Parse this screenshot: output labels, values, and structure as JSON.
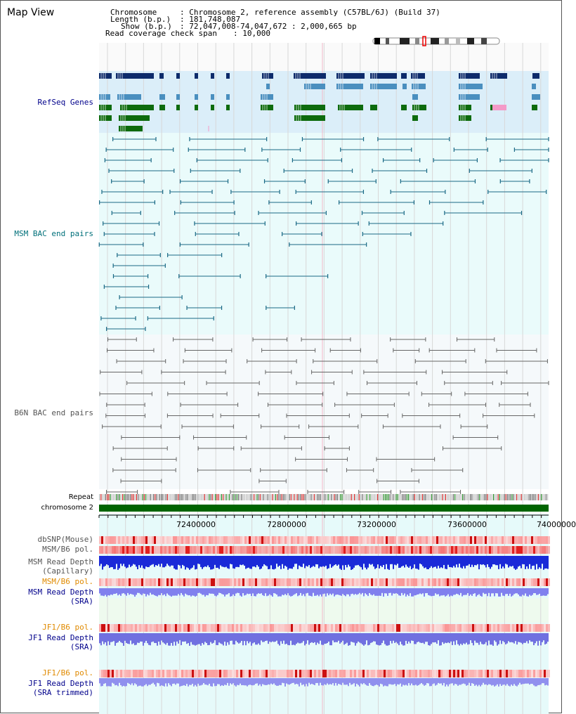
{
  "title": "Map View",
  "info": {
    "chromosome_key": "Chromosome",
    "chromosome_val": ": Chromosome 2, reference assembly (C57BL/6J) (Build 37)",
    "length_key": "Length (b.p.)",
    "length_val": ": 181,748,087",
    "show_key": "Show (b.p.)",
    "show_val": ": 72,047,008-74,047,672 : 2,000,665 bp",
    "span_key": "Read coverage check span",
    "span_val": ": 10,000"
  },
  "labels": {
    "refseq": "RefSeq Genes",
    "msm_bac": "MSM BAC end pairs",
    "b6n_bac": "B6N BAC end pairs",
    "repeat": "Repeat",
    "chromosome": "chromosome 2",
    "dbsnp": "dbSNP(Mouse)",
    "msm_b6_pol_1": "MSM/B6 pol.",
    "msm_read_cap_1": "MSM Read Depth",
    "msm_read_cap_2": "(Capillary)",
    "msm_b6_pol_2": "MSM/B6 pol.",
    "msm_read_sra_1": "MSM Read Depth",
    "msm_read_sra_2": "(SRA)",
    "jf1_b6_pol_1": "JF1/B6 pol.",
    "jf1_read_sra_1": "JF1 Read Depth",
    "jf1_read_sra_2": "(SRA)",
    "jf1_b6_pol_2": "JF1/B6 pol.",
    "jf1_read_trim_1": "JF1 Read Depth",
    "jf1_read_trim_2": "(SRA trimmed)"
  },
  "axis_ticks": [
    "72400000",
    "72800000",
    "73200000",
    "73600000",
    "74000000"
  ],
  "colors": {
    "refseq_bg": "#dbeef9",
    "bac_bg": "#eafbfb",
    "b6n_bg": "#f5f9fb",
    "gene_dark": "#0d2b6b",
    "gene_mid": "#4a8fbf",
    "gene_green": "#0d6b0d",
    "gene_pink": "#f49ac8",
    "msm_pair": "#1b6a86",
    "b6n_pair": "#666666",
    "chrom_bar": "#006400",
    "label_blue": "#00008b",
    "label_teal": "#00707a",
    "label_gray": "#555555",
    "label_orange": "#e08a00"
  }
}
